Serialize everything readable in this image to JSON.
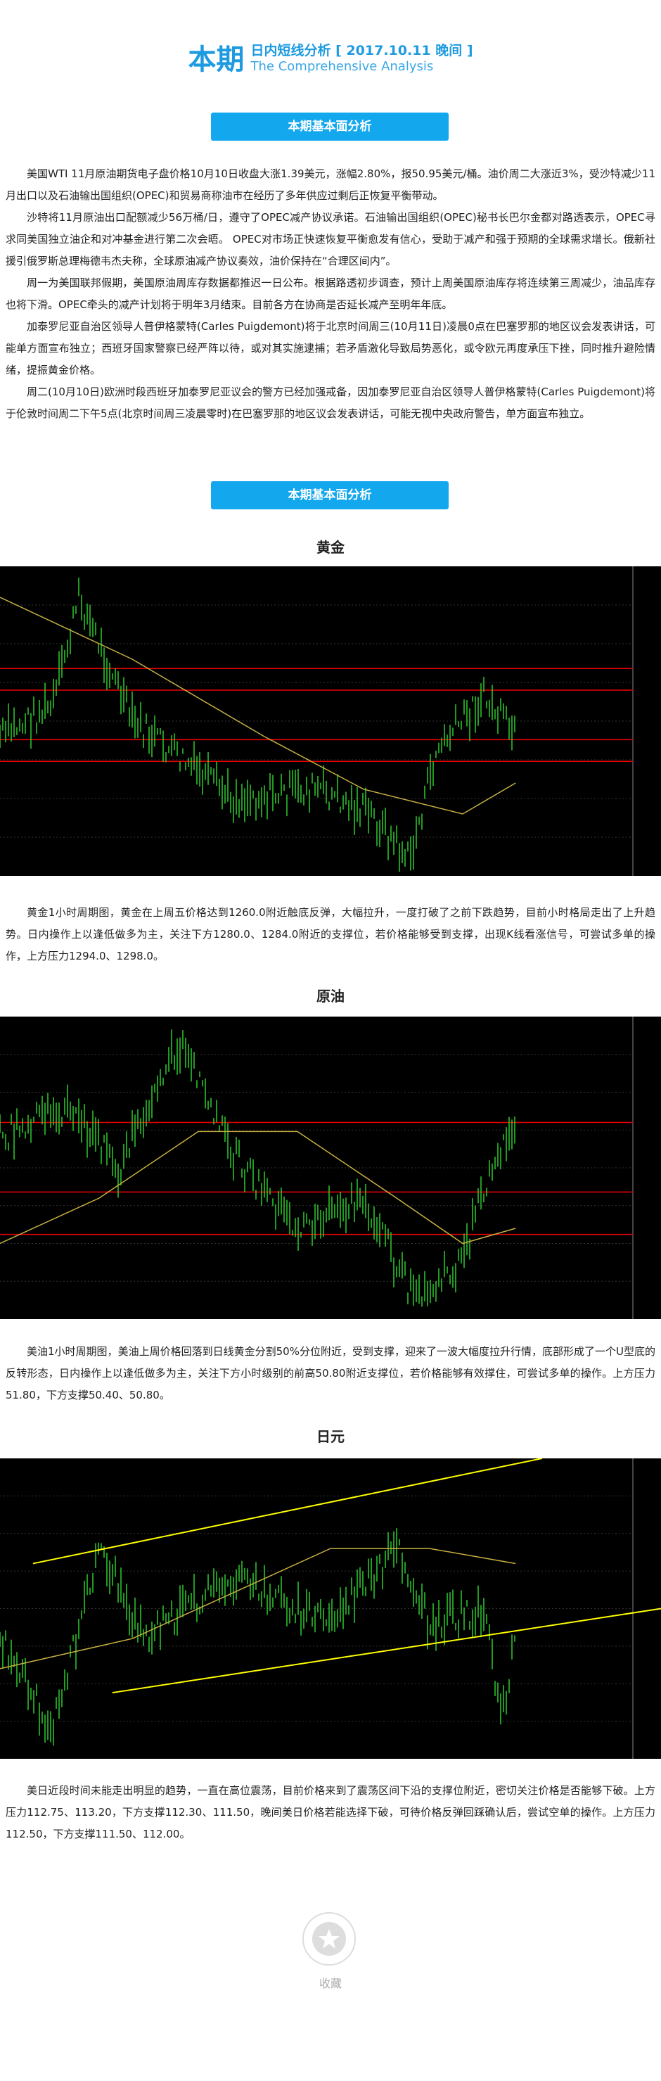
{
  "header": {
    "title_main": "本期",
    "title_sub": "日内短线分析 [ 2017.10.11 晚间 ]",
    "title_en": "The Comprehensive Analysis"
  },
  "fundamentals": {
    "button": "本期基本面分析",
    "paragraphs": [
      "美国WTI 11月原油期货电子盘价格10月10日收盘大涨1.39美元，涨幅2.80%，报50.95美元/桶。油价周二大涨近3%，受沙特减少11月出口以及石油输出国组织(OPEC)和贸易商称油市在经历了多年供应过剩后正恢复平衡带动。",
      "沙特将11月原油出口配额减少56万桶/日，遵守了OPEC减产协议承诺。石油输出国组织(OPEC)秘书长巴尔金都对路透表示，OPEC寻求同美国独立油企和对冲基金进行第二次会晤。 OPEC对市场正快速恢复平衡愈发有信心，受助于减产和强于预期的全球需求增长。俄新社援引俄罗斯总理梅德韦杰夫称，全球原油减产协议奏效，油价保持在“合理区间内”。",
      "周一为美国联邦假期，美国原油周库存数据都推迟一日公布。根据路透初步调查，预计上周美国原油库存将连续第三周减少，油品库存也将下滑。OPEC牵头的减产计划将于明年3月结束。目前各方在协商是否延长减产至明年年底。",
      "加泰罗尼亚自治区领导人普伊格蒙特(Carles Puigdemont)将于北京时间周三(10月11日)凌晨0点在巴塞罗那的地区议会发表讲话，可能单方面宣布独立；西班牙国家警察已经严阵以待，或对其实施逮捕；若矛盾激化导致局势恶化，或令欧元再度承压下挫，同时推升避险情绪，提振黄金价格。",
      "周二(10月10日)欧洲时段西班牙加泰罗尼亚议会的警方已经加强戒备，因加泰罗尼亚自治区领导人普伊格蒙特(Carles Puigdemont)将于伦敦时间周二下午5点(北京时间周三凌晨零时)在巴塞罗那的地区议会发表讲话，可能无视中央政府警告，单方面宣布独立。"
    ]
  },
  "technical": {
    "button": "本期基本面分析",
    "charts": [
      {
        "title": "黄金",
        "text": "黄金1小时周期图，黄金在上周五价格达到1260.0附近触底反弹，大幅拉升，一度打破了之前下跌趋势，目前小时格局走出了上升趋势。日内操作上以逢低做多为主，关注下方1280.0、1284.0附近的支撑位，若价格能够受到支撑，出现K线看涨信号，可尝试多单的操作，上方压力1294.0、1298.0。"
      },
      {
        "title": "原油",
        "text": "美油1小时周期图，美油上周价格回落到日线黄金分割50%分位附近，受到支撑，迎来了一波大幅度拉升行情，底部形成了一个U型底的反转形态，日内操作上以逢低做多为主，关注下方小时级别的前高50.80附近支撑位，若价格能够有效撑住，可尝试多单的操作。上方压力51.80，下方支撑50.40、50.80。"
      },
      {
        "title": "日元",
        "text": "美日近段时间未能走出明显的趋势，一直在高位震荡，目前价格来到了震荡区间下沿的支撑位附近，密切关注价格是否能够下破。上方压力112.75、113.20，下方支撑112.30、111.50，晚间美日价格若能选择下破，可待价格反弹回踩确认后，尝试空单的操作。上方压力112.50，下方支撑111.50、112.00。"
      }
    ]
  },
  "collect": "收藏"
}
